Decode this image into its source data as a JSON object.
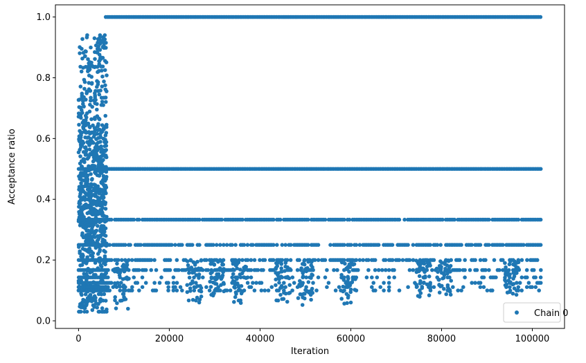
{
  "chart_data": {
    "type": "scatter",
    "title": "",
    "xlabel": "Iteration",
    "ylabel": "Acceptance ratio",
    "xlim": [
      -5100,
      107100
    ],
    "ylim": [
      -0.025,
      1.04
    ],
    "xticks": [
      0,
      20000,
      40000,
      60000,
      80000,
      100000
    ],
    "xtick_labels": [
      "0",
      "20000",
      "40000",
      "60000",
      "80000",
      "100000"
    ],
    "yticks": [
      0.0,
      0.2,
      0.4,
      0.6,
      0.8,
      1.0
    ],
    "ytick_labels": [
      "0.0",
      "0.2",
      "0.4",
      "0.6",
      "0.8",
      "1.0"
    ],
    "grid": false,
    "legend": {
      "placement": "lower right",
      "entries": [
        "Chain 0"
      ]
    },
    "series": [
      {
        "name": "Chain 0",
        "color": "#1f77b4",
        "marker": "circle",
        "description_points": "burn-in cloud",
        "burn_in": {
          "x_range": [
            0,
            6200
          ],
          "y_range": [
            0.03,
            0.94
          ]
        },
        "levels": [
          {
            "y": 1.0,
            "x_range": [
              6000,
              102000
            ],
            "continuous": true
          },
          {
            "y": 0.5,
            "x_range": [
              0,
              102000
            ],
            "continuous": true
          },
          {
            "y": 0.333,
            "x_range": [
              0,
              102000
            ],
            "continuous": false
          },
          {
            "y": 0.25,
            "x_range": [
              0,
              102000
            ],
            "continuous": false
          },
          {
            "y": 0.2,
            "x_range": [
              0,
              102000
            ],
            "continuous": false
          },
          {
            "y": 0.167,
            "x_range": [
              0,
              102000
            ],
            "continuous": false
          },
          {
            "y": 0.143,
            "x_range": [
              0,
              102000
            ],
            "continuous": false
          },
          {
            "y": 0.125,
            "x_range": [
              0,
              102000
            ],
            "continuous": false
          },
          {
            "y": 0.111,
            "x_range": [
              0,
              102000
            ],
            "continuous": false
          },
          {
            "y": 0.1,
            "x_range": [
              0,
              102000
            ],
            "continuous": false
          }
        ],
        "dips": [
          {
            "x": 9500,
            "min_y": 0.025
          },
          {
            "x": 25500,
            "min_y": 0.06
          },
          {
            "x": 30500,
            "min_y": 0.08
          },
          {
            "x": 35500,
            "min_y": 0.05
          },
          {
            "x": 45000,
            "min_y": 0.055
          },
          {
            "x": 50000,
            "min_y": 0.04
          },
          {
            "x": 59500,
            "min_y": 0.05
          },
          {
            "x": 76000,
            "min_y": 0.07
          },
          {
            "x": 80500,
            "min_y": 0.08
          },
          {
            "x": 95500,
            "min_y": 0.08
          }
        ]
      }
    ]
  }
}
